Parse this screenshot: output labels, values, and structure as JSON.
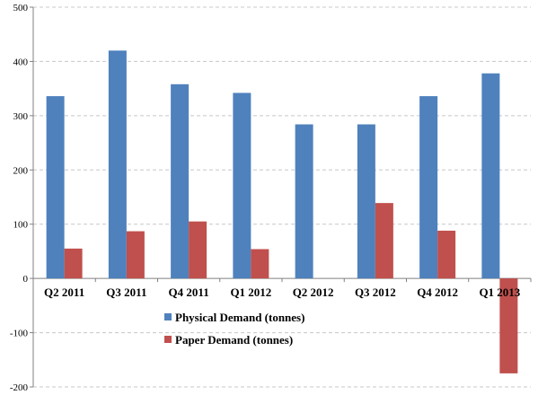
{
  "chart_data": {
    "type": "bar",
    "title": "",
    "xlabel": "",
    "ylabel": "",
    "categories": [
      "Q2 2011",
      "Q3 2011",
      "Q4 2011",
      "Q1 2012",
      "Q2 2012",
      "Q3 2012",
      "Q4 2012",
      "Q1 2013"
    ],
    "series": [
      {
        "name": "Physical Demand (tonnes)",
        "color": "#4F81BD",
        "values": [
          336,
          420,
          358,
          342,
          284,
          284,
          336,
          378
        ]
      },
      {
        "name": "Paper Demand (tonnes)",
        "color": "#C0504D",
        "values": [
          55,
          87,
          105,
          54,
          0,
          139,
          88,
          -175
        ]
      }
    ],
    "ylim": [
      -200,
      500
    ],
    "yticks": [
      -200,
      -100,
      0,
      100,
      200,
      300,
      400,
      500
    ],
    "grid": true,
    "legend_position": "center"
  }
}
